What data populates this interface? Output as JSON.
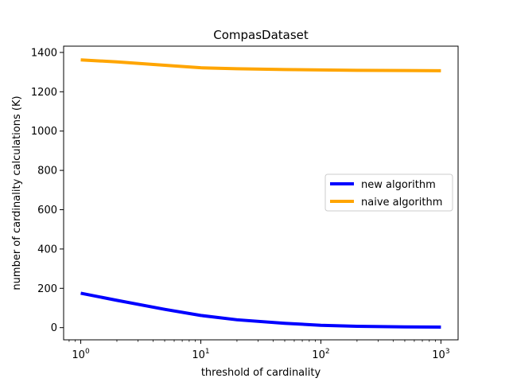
{
  "chart_data": {
    "type": "line",
    "title": "CompasDataset",
    "xlabel": "threshold of cardinality",
    "ylabel": "number of cardinality calculations (K)",
    "x_scale": "log",
    "xlim": [
      0.72,
      1390
    ],
    "ylim": [
      -62,
      1432
    ],
    "x_ticks": [
      1,
      10,
      100,
      1000
    ],
    "x_tick_labels": [
      {
        "base": "10",
        "exp": "0"
      },
      {
        "base": "10",
        "exp": "1"
      },
      {
        "base": "10",
        "exp": "2"
      },
      {
        "base": "10",
        "exp": "3"
      }
    ],
    "y_ticks": [
      0,
      200,
      400,
      600,
      800,
      1000,
      1200,
      1400
    ],
    "y_tick_labels": [
      "0",
      "200",
      "400",
      "600",
      "800",
      "1000",
      "1200",
      "1400"
    ],
    "grid": false,
    "legend_position": "center-right",
    "series": [
      {
        "name": "new algorithm",
        "color": "#0000ff",
        "x": [
          1,
          2,
          5,
          10,
          20,
          50,
          100,
          200,
          500,
          1000
        ],
        "y": [
          175,
          139,
          93,
          62,
          40,
          22,
          12,
          7,
          4,
          3
        ]
      },
      {
        "name": "naive algorithm",
        "color": "#ffa500",
        "x": [
          1,
          2,
          5,
          10,
          20,
          50,
          100,
          200,
          500,
          1000
        ],
        "y": [
          1362,
          1352,
          1335,
          1322,
          1317,
          1313,
          1311,
          1309,
          1308,
          1307
        ]
      }
    ]
  }
}
